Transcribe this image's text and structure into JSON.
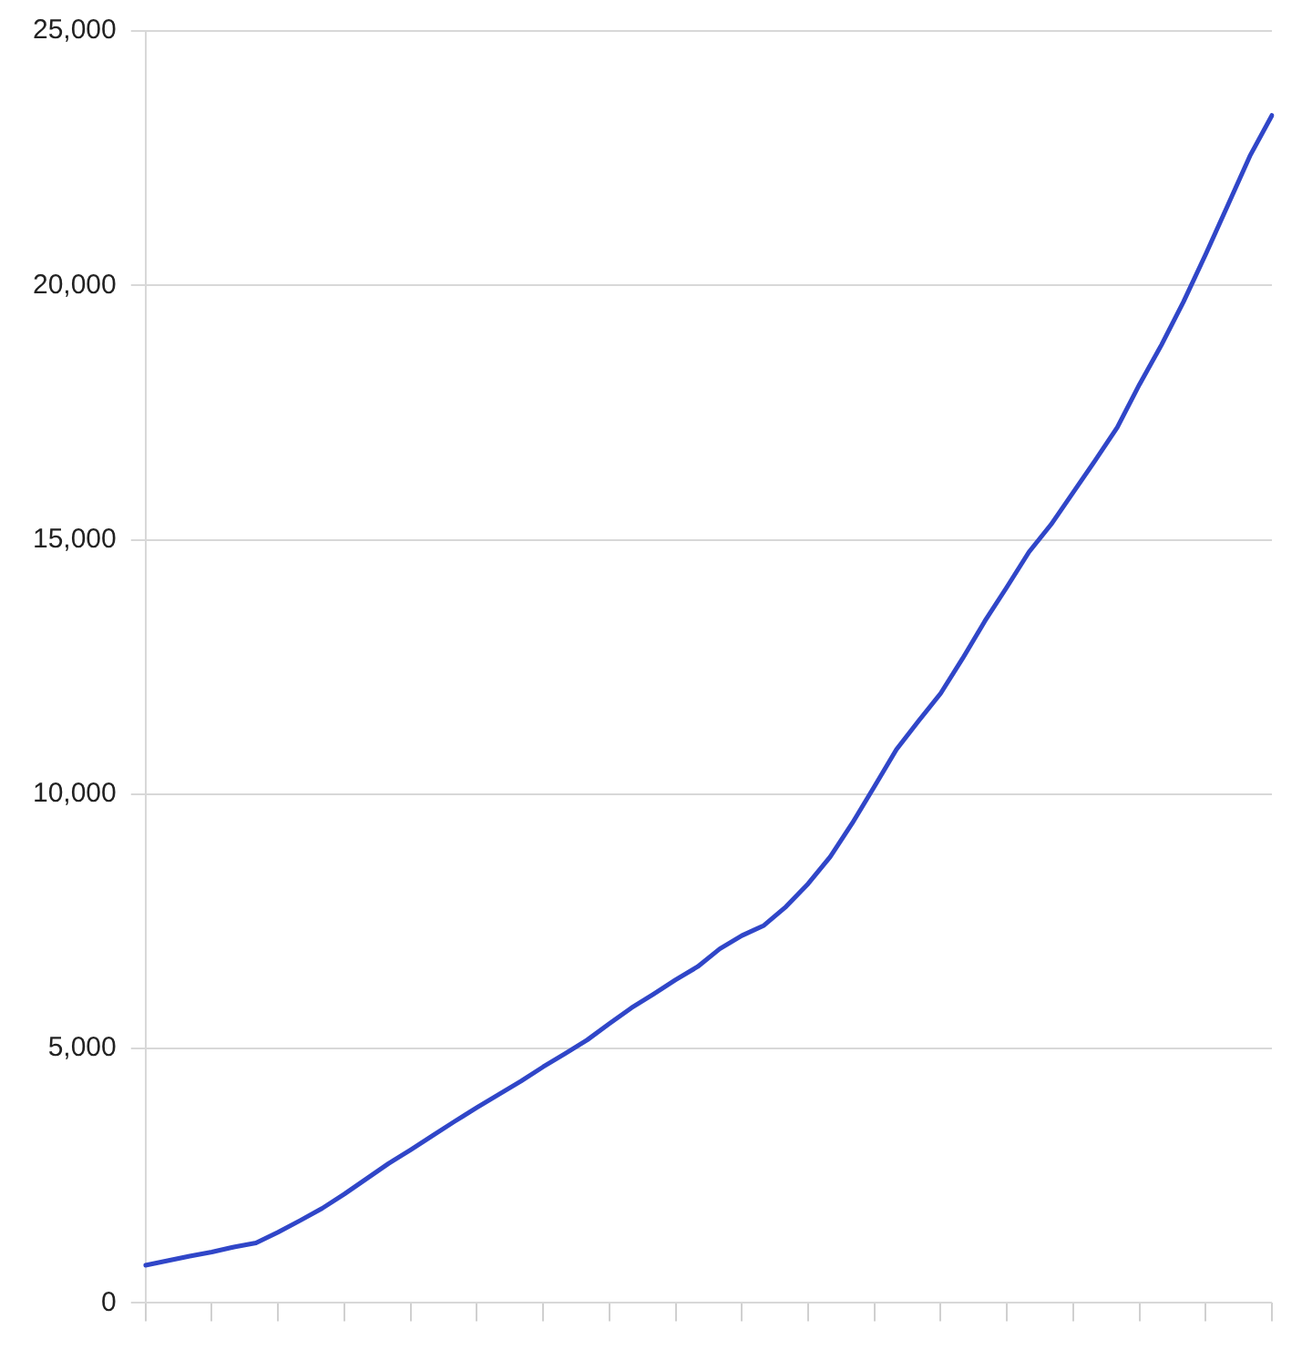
{
  "chart_data": {
    "type": "line",
    "categories": [
      null,
      null,
      null,
      null,
      null,
      null,
      null,
      null,
      null,
      null,
      null,
      null,
      null,
      null,
      null,
      null,
      null,
      null,
      null,
      null,
      null,
      null,
      null,
      null,
      null,
      null,
      null,
      null,
      null,
      null,
      null,
      null,
      null,
      null,
      null,
      null,
      null,
      null,
      null,
      null,
      null,
      null,
      null,
      null,
      null,
      null,
      null,
      null,
      null,
      null,
      null,
      null
    ],
    "series": [
      {
        "color": "#3046c8",
        "values": [
          740,
          830,
          920,
          1000,
          1100,
          1180,
          1390,
          1620,
          1860,
          2140,
          2440,
          2740,
          3010,
          3290,
          3570,
          3840,
          4100,
          4360,
          4640,
          4900,
          5170,
          5490,
          5800,
          6070,
          6350,
          6610,
          6960,
          7220,
          7420,
          7790,
          8240,
          8770,
          9430,
          10150,
          10880,
          11440,
          11980,
          12670,
          13400,
          14070,
          14760,
          15300,
          15930,
          16560,
          17210,
          18050,
          18830,
          19680,
          20610,
          21570,
          22540,
          23340
        ]
      }
    ],
    "ylim": [
      0,
      25000
    ],
    "yticks": [
      {
        "value": 0,
        "label": "0"
      },
      {
        "value": 5000,
        "label": "5,000"
      },
      {
        "value": 10000,
        "label": "10,000"
      },
      {
        "value": 15000,
        "label": "15,000"
      },
      {
        "value": 20000,
        "label": "20,000"
      },
      {
        "value": 25000,
        "label": "25,000"
      }
    ],
    "grid": "y",
    "marker": "none",
    "line_style": "solid",
    "tick_labels": "y"
  }
}
